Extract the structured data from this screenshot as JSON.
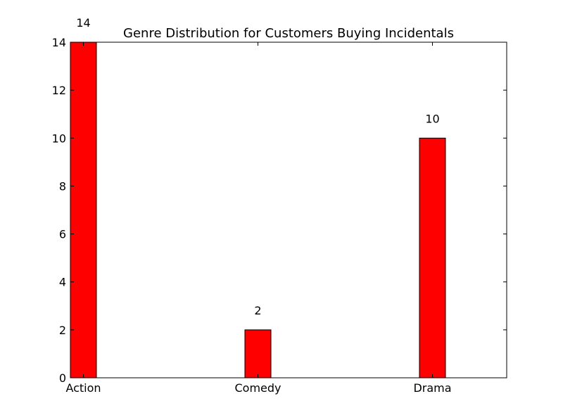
{
  "chart_data": {
    "type": "bar",
    "title": "Genre Distribution for Customers Buying Incidentals",
    "xlabel": "",
    "ylabel": "",
    "categories": [
      "Action",
      "Comedy",
      "Drama"
    ],
    "values": [
      14,
      2,
      10
    ],
    "data_labels": [
      "14",
      "2",
      "10"
    ],
    "ylim": [
      0,
      14
    ],
    "yticks": [
      0,
      2,
      4,
      6,
      8,
      10,
      12,
      14
    ],
    "grid": false,
    "legend": "none",
    "bar_color": "#ff0000",
    "bar_edge_color": "#000000"
  }
}
